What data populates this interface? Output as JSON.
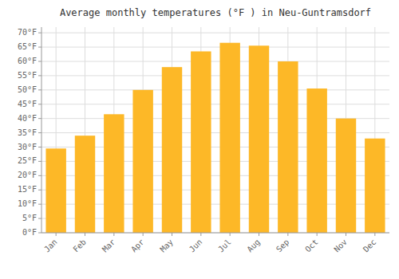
{
  "chart_data": {
    "type": "bar",
    "title": "Average monthly temperatures (°F ) in Neu-Guntramsdorf",
    "categories": [
      "Jan",
      "Feb",
      "Mar",
      "Apr",
      "May",
      "Jun",
      "Jul",
      "Aug",
      "Sep",
      "Oct",
      "Nov",
      "Dec"
    ],
    "values": [
      29.5,
      34.0,
      41.5,
      50.0,
      58.0,
      63.5,
      66.5,
      65.5,
      60.0,
      50.5,
      40.0,
      33.0
    ],
    "color": "#FDB827",
    "ylim": [
      0,
      72
    ],
    "yticks": [
      {
        "value": 0,
        "label": "0°F"
      },
      {
        "value": 5,
        "label": "5°F"
      },
      {
        "value": 10,
        "label": "10°F"
      },
      {
        "value": 15,
        "label": "15°F"
      },
      {
        "value": 20,
        "label": "20°F"
      },
      {
        "value": 25,
        "label": "25°F"
      },
      {
        "value": 30,
        "label": "30°F"
      },
      {
        "value": 35,
        "label": "35°F"
      },
      {
        "value": 40,
        "label": "40°F"
      },
      {
        "value": 45,
        "label": "45°F"
      },
      {
        "value": 50,
        "label": "50°F"
      },
      {
        "value": 55,
        "label": "55°F"
      },
      {
        "value": 60,
        "label": "60°F"
      },
      {
        "value": 65,
        "label": "65°F"
      },
      {
        "value": 70,
        "label": "70°F"
      }
    ],
    "grid": true
  }
}
